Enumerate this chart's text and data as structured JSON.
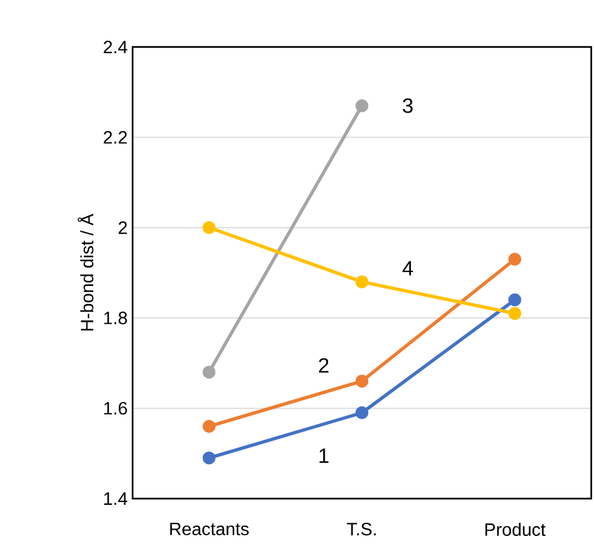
{
  "chart_data": {
    "type": "line",
    "ylabel": "H-bond dist / Å",
    "categories": [
      "Reactants",
      "T.S.",
      "Product"
    ],
    "series": [
      {
        "name": "1",
        "color": "#4472c4",
        "values": [
          1.49,
          1.59,
          1.84
        ]
      },
      {
        "name": "2",
        "color": "#ed7d31",
        "values": [
          1.56,
          1.66,
          1.93
        ]
      },
      {
        "name": "3",
        "color": "#a5a5a5",
        "values": [
          1.68,
          2.27,
          null
        ]
      },
      {
        "name": "4",
        "color": "#ffc000",
        "values": [
          2.0,
          1.88,
          1.81
        ]
      }
    ],
    "ylim": [
      1.4,
      2.4
    ],
    "yticks": [
      1.4,
      1.6,
      1.8,
      2,
      2.2,
      2.4
    ],
    "grid": "y",
    "marker": "circle",
    "line_style": "solid"
  }
}
